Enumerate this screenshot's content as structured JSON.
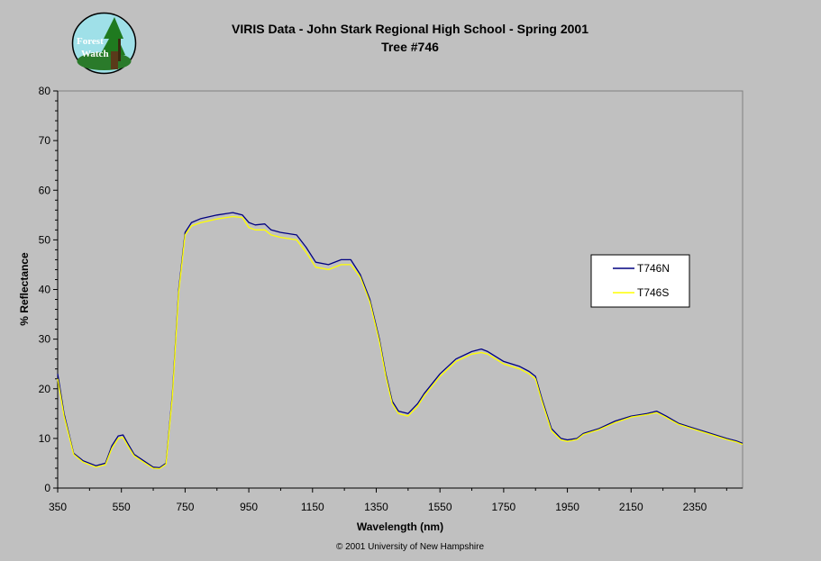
{
  "logo": {
    "line1": "Forest",
    "line2": "Watch"
  },
  "chart_data": {
    "type": "line",
    "title": "VIRIS Data -  John Stark Regional High School - Spring 2001",
    "subtitle": "Tree #746",
    "xlabel": "Wavelength (nm)",
    "ylabel": "% Reflectance",
    "xlim": [
      350,
      2500
    ],
    "ylim": [
      0,
      80
    ],
    "xticks": [
      "350",
      "550",
      "750",
      "950",
      "1150",
      "1350",
      "1550",
      "1750",
      "1950",
      "2150",
      "2350"
    ],
    "yticks": [
      "0",
      "10",
      "20",
      "30",
      "40",
      "50",
      "60",
      "70",
      "80"
    ],
    "grid": false,
    "legend_position": "right",
    "footer": "© 2001 University of New Hampshire",
    "series": [
      {
        "name": "T746N",
        "color": "#000080",
        "x": [
          350,
          370,
          400,
          430,
          470,
          500,
          520,
          540,
          555,
          570,
          590,
          620,
          650,
          670,
          690,
          710,
          730,
          750,
          770,
          800,
          850,
          900,
          930,
          950,
          970,
          1000,
          1020,
          1050,
          1100,
          1130,
          1160,
          1200,
          1240,
          1270,
          1300,
          1330,
          1360,
          1380,
          1400,
          1420,
          1450,
          1480,
          1500,
          1550,
          1600,
          1650,
          1680,
          1700,
          1750,
          1800,
          1830,
          1850,
          1870,
          1900,
          1930,
          1950,
          1980,
          2000,
          2050,
          2100,
          2150,
          2200,
          2230,
          2260,
          2300,
          2350,
          2400,
          2450,
          2480,
          2500
        ],
        "y": [
          23,
          15,
          7,
          5.5,
          4.5,
          5,
          8.5,
          10.5,
          10.7,
          9,
          6.8,
          5.5,
          4.2,
          4.1,
          5,
          19,
          40,
          51.5,
          53.5,
          54.3,
          55,
          55.5,
          55,
          53.5,
          53,
          53.2,
          52,
          51.5,
          51,
          48.5,
          45.5,
          45,
          46,
          46,
          43,
          38,
          30,
          23,
          17.5,
          15.5,
          15,
          17,
          19,
          23,
          26,
          27.5,
          28,
          27.5,
          25.5,
          24.5,
          23.5,
          22.5,
          18,
          12,
          10,
          9.7,
          10,
          11,
          12,
          13.5,
          14.5,
          15,
          15.5,
          14.5,
          13,
          12,
          11,
          10,
          9.5,
          9
        ]
      },
      {
        "name": "T746S",
        "color": "#ffff00",
        "x": [
          350,
          370,
          400,
          430,
          470,
          500,
          520,
          540,
          555,
          570,
          590,
          620,
          650,
          670,
          690,
          710,
          730,
          750,
          770,
          800,
          850,
          900,
          930,
          950,
          970,
          1000,
          1020,
          1050,
          1100,
          1130,
          1160,
          1200,
          1240,
          1270,
          1300,
          1330,
          1360,
          1380,
          1400,
          1420,
          1450,
          1480,
          1500,
          1550,
          1600,
          1650,
          1680,
          1700,
          1750,
          1800,
          1830,
          1850,
          1870,
          1900,
          1930,
          1950,
          1980,
          2000,
          2050,
          2100,
          2150,
          2200,
          2230,
          2260,
          2300,
          2350,
          2400,
          2450,
          2480,
          2500
        ],
        "y": [
          22,
          14.5,
          6.8,
          5.2,
          4.2,
          4.7,
          8,
          10,
          10.2,
          8.5,
          6.5,
          5.2,
          4,
          3.9,
          4.8,
          18.5,
          39.5,
          51,
          52.8,
          53.5,
          54.2,
          54.7,
          54.5,
          52.5,
          52,
          52,
          51,
          50.5,
          50,
          47.5,
          44.5,
          44,
          45,
          45,
          42.5,
          37.5,
          29.5,
          22.5,
          17,
          15,
          14.5,
          16.5,
          18.5,
          22.5,
          25.5,
          27,
          27.3,
          27,
          25,
          24,
          23,
          22,
          17.5,
          11.5,
          9.7,
          9.4,
          9.8,
          10.8,
          11.8,
          13.2,
          14.3,
          14.8,
          15.2,
          14.2,
          12.8,
          11.8,
          10.8,
          9.8,
          9.3,
          8.8
        ]
      }
    ]
  }
}
